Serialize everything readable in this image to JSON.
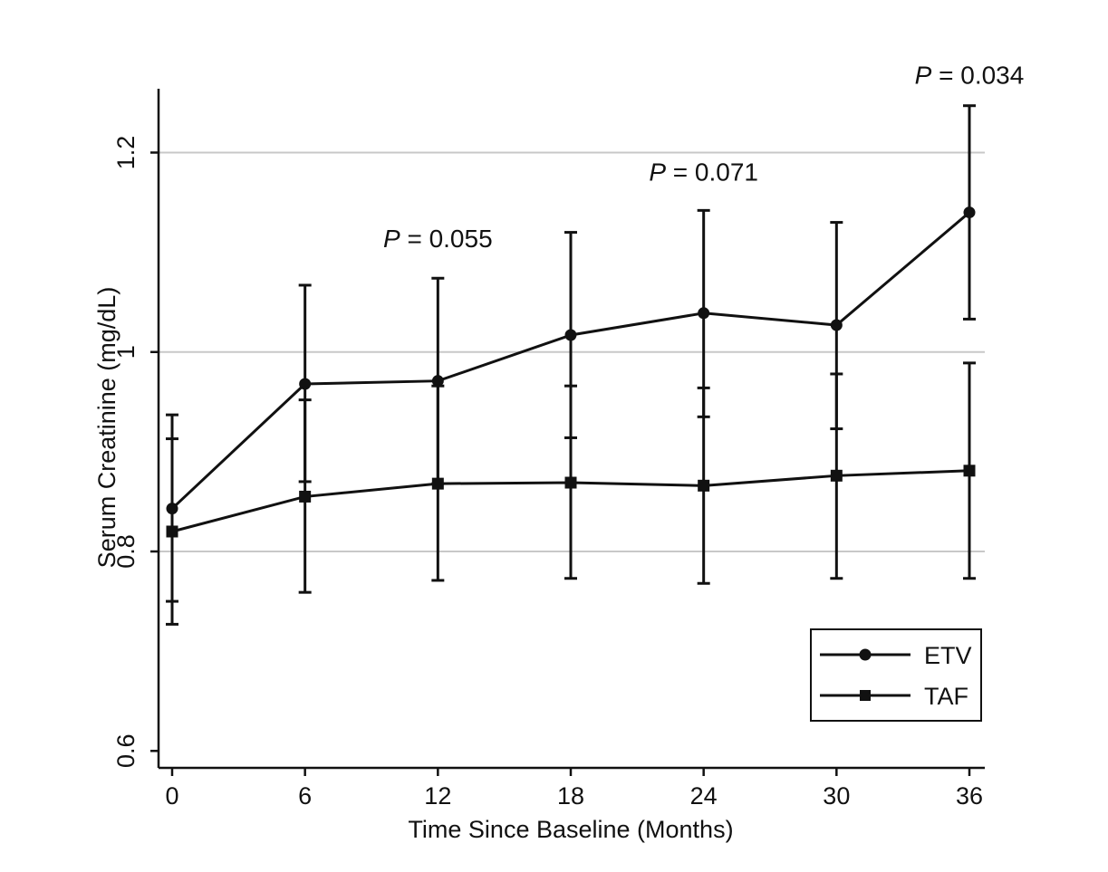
{
  "chart_data": {
    "type": "line",
    "title": "",
    "xlabel": "Time Since Baseline (Months)",
    "ylabel": "Serum Creatinine (mg/dL)",
    "x": [
      0,
      6,
      12,
      18,
      24,
      30,
      36
    ],
    "x_ticks": [
      "0",
      "6",
      "12",
      "18",
      "24",
      "30",
      "36"
    ],
    "y_ticks": [
      "0.6",
      "0.8",
      "1",
      "1.2"
    ],
    "y_tick_values": [
      0.6,
      0.8,
      1.0,
      1.2
    ],
    "xlim": [
      -0.4,
      36.6
    ],
    "ylim": [
      0.583,
      1.264
    ],
    "grid": "horizontal",
    "legend_position": "bottom-right",
    "series": [
      {
        "name": "ETV",
        "marker": "circle",
        "values": [
          0.843,
          0.968,
          0.971,
          1.017,
          1.039,
          1.027,
          1.14
        ],
        "lower": [
          0.75,
          0.87,
          0.868,
          0.914,
          0.935,
          0.923,
          1.033
        ],
        "upper": [
          0.937,
          1.067,
          1.074,
          1.12,
          1.142,
          1.13,
          1.247
        ]
      },
      {
        "name": "TAF",
        "marker": "square",
        "values": [
          0.82,
          0.855,
          0.868,
          0.869,
          0.866,
          0.876,
          0.881
        ],
        "lower": [
          0.727,
          0.759,
          0.771,
          0.773,
          0.768,
          0.773,
          0.773
        ],
        "upper": [
          0.913,
          0.952,
          0.966,
          0.966,
          0.964,
          0.978,
          0.989
        ]
      }
    ],
    "annotations": [
      {
        "prefix": "P",
        "text": " = 0.055",
        "x": 12,
        "y": 1.105
      },
      {
        "prefix": "P",
        "text": " = 0.071",
        "x": 24,
        "y": 1.172
      },
      {
        "prefix": "P",
        "text": " = 0.034",
        "x": 36,
        "y": 1.269
      }
    ]
  }
}
